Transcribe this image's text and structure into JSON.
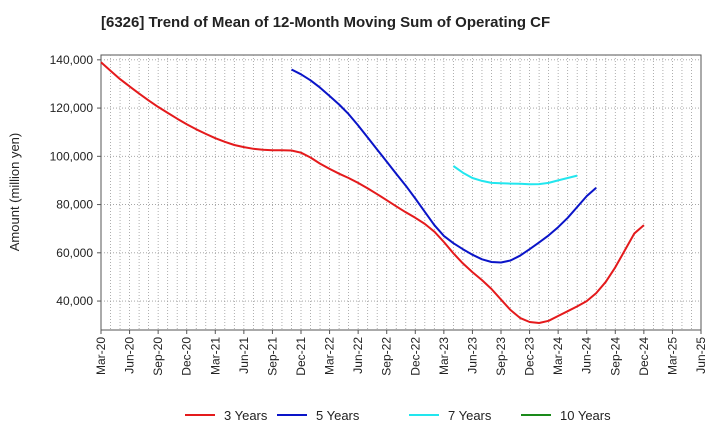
{
  "chart_data": {
    "type": "line",
    "title": "[6326]  Trend of Mean of 12-Month Moving Sum of Operating CF",
    "xlabel": "",
    "ylabel": "Amount (million yen)",
    "ylim": [
      28000,
      142000
    ],
    "yticks": [
      40000,
      60000,
      80000,
      100000,
      120000,
      140000
    ],
    "ytick_labels": [
      "40,000",
      "60,000",
      "80,000",
      "100,000",
      "120,000",
      "140,000"
    ],
    "x_tick_labels": [
      "Mar-20",
      "Jun-20",
      "Sep-20",
      "Dec-20",
      "Mar-21",
      "Jun-21",
      "Sep-21",
      "Dec-21",
      "Mar-22",
      "Jun-22",
      "Sep-22",
      "Dec-22",
      "Mar-23",
      "Jun-23",
      "Sep-23",
      "Dec-23",
      "Mar-24",
      "Jun-24",
      "Sep-24",
      "Dec-24",
      "Mar-25",
      "Jun-25"
    ],
    "grid": true,
    "legend_position": "bottom",
    "series": [
      {
        "name": "3 Years",
        "color": "#e41a1c",
        "points": [
          [
            0,
            139000
          ],
          [
            1,
            135500
          ],
          [
            2,
            132000
          ],
          [
            3,
            129000
          ],
          [
            4,
            126000
          ],
          [
            5,
            123200
          ],
          [
            6,
            120500
          ],
          [
            7,
            118000
          ],
          [
            8,
            115600
          ],
          [
            9,
            113300
          ],
          [
            10,
            111200
          ],
          [
            11,
            109300
          ],
          [
            12,
            107500
          ],
          [
            13,
            106000
          ],
          [
            14,
            104700
          ],
          [
            15,
            103800
          ],
          [
            16,
            103100
          ],
          [
            17,
            102700
          ],
          [
            18,
            102500
          ],
          [
            19,
            102500
          ],
          [
            20,
            102400
          ],
          [
            21,
            101500
          ],
          [
            22,
            99500
          ],
          [
            23,
            97000
          ],
          [
            24,
            94800
          ],
          [
            25,
            92800
          ],
          [
            26,
            91000
          ],
          [
            27,
            89000
          ],
          [
            28,
            86700
          ],
          [
            29,
            84300
          ],
          [
            30,
            81800
          ],
          [
            31,
            79300
          ],
          [
            32,
            76800
          ],
          [
            33,
            74500
          ],
          [
            34,
            72000
          ],
          [
            35,
            68800
          ],
          [
            36,
            64500
          ],
          [
            37,
            59800
          ],
          [
            38,
            55600
          ],
          [
            39,
            52000
          ],
          [
            40,
            48700
          ],
          [
            41,
            45000
          ],
          [
            42,
            40600
          ],
          [
            43,
            36300
          ],
          [
            44,
            33000
          ],
          [
            45,
            31300
          ],
          [
            46,
            30900
          ],
          [
            47,
            31800
          ],
          [
            48,
            33800
          ],
          [
            49,
            35800
          ],
          [
            50,
            37800
          ],
          [
            51,
            40000
          ],
          [
            52,
            43300
          ],
          [
            53,
            48000
          ],
          [
            54,
            54000
          ],
          [
            55,
            61000
          ],
          [
            56,
            68000
          ],
          [
            57,
            71500
          ]
        ]
      },
      {
        "name": "5 Years",
        "color": "#0a14c8",
        "points": [
          [
            20,
            136000
          ],
          [
            21,
            134000
          ],
          [
            22,
            131500
          ],
          [
            23,
            128500
          ],
          [
            24,
            125000
          ],
          [
            25,
            121500
          ],
          [
            26,
            117500
          ],
          [
            27,
            112800
          ],
          [
            28,
            107800
          ],
          [
            29,
            102800
          ],
          [
            30,
            97800
          ],
          [
            31,
            92800
          ],
          [
            32,
            87800
          ],
          [
            33,
            82500
          ],
          [
            34,
            77000
          ],
          [
            35,
            71500
          ],
          [
            36,
            67000
          ],
          [
            37,
            64000
          ],
          [
            38,
            61500
          ],
          [
            39,
            59200
          ],
          [
            40,
            57300
          ],
          [
            41,
            56200
          ],
          [
            42,
            56000
          ],
          [
            43,
            56800
          ],
          [
            44,
            58800
          ],
          [
            45,
            61500
          ],
          [
            46,
            64300
          ],
          [
            47,
            67200
          ],
          [
            48,
            70600
          ],
          [
            49,
            74500
          ],
          [
            50,
            79000
          ],
          [
            51,
            83500
          ],
          [
            52,
            87000
          ]
        ]
      },
      {
        "name": "7 Years",
        "color": "#22e6ee",
        "points": [
          [
            37,
            96000
          ],
          [
            38,
            93200
          ],
          [
            39,
            91000
          ],
          [
            40,
            89800
          ],
          [
            41,
            89000
          ],
          [
            42,
            88800
          ],
          [
            43,
            88700
          ],
          [
            44,
            88600
          ],
          [
            45,
            88400
          ],
          [
            46,
            88500
          ],
          [
            47,
            89000
          ],
          [
            48,
            90000
          ],
          [
            49,
            91000
          ],
          [
            50,
            92000
          ]
        ]
      },
      {
        "name": "10 Years",
        "color": "#1a8a1a",
        "points": []
      }
    ]
  }
}
